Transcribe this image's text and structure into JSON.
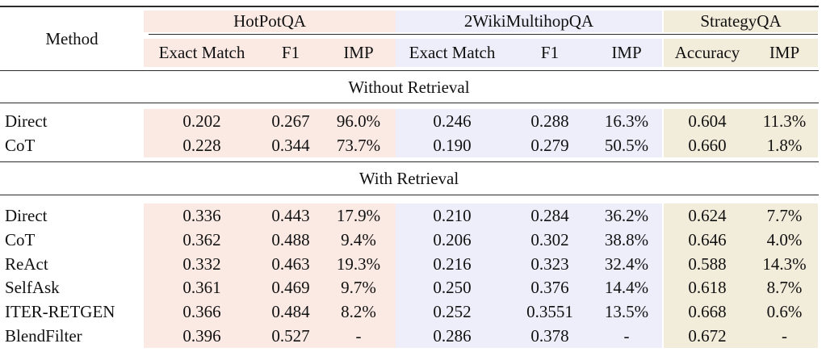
{
  "table": {
    "method_header": "Method",
    "groups": [
      {
        "name": "HotPotQA",
        "bg_color": "#fbeae4",
        "columns": [
          "Exact Match",
          "F1",
          "IMP"
        ]
      },
      {
        "name": "2WikiMultihopQA",
        "bg_color": "#edeefa",
        "columns": [
          "Exact Match",
          "F1",
          "IMP"
        ]
      },
      {
        "name": "StrategyQA",
        "bg_color": "#f2ecda",
        "columns": [
          "Accuracy",
          "IMP"
        ]
      }
    ],
    "sections": [
      {
        "title": "Without Retrieval",
        "rows": [
          {
            "method": "Direct",
            "values": [
              "0.202",
              "0.267",
              "96.0%",
              "0.246",
              "0.288",
              "16.3%",
              "0.604",
              "11.3%"
            ]
          },
          {
            "method": "CoT",
            "values": [
              "0.228",
              "0.344",
              "73.7%",
              "0.190",
              "0.279",
              "50.5%",
              "0.660",
              "1.8%"
            ]
          }
        ]
      },
      {
        "title": "With Retrieval",
        "rows": [
          {
            "method": "Direct",
            "values": [
              "0.336",
              "0.443",
              "17.9%",
              "0.210",
              "0.284",
              "36.2%",
              "0.624",
              "7.7%"
            ]
          },
          {
            "method": "CoT",
            "values": [
              "0.362",
              "0.488",
              "9.4%",
              "0.206",
              "0.302",
              "38.8%",
              "0.646",
              "4.0%"
            ]
          },
          {
            "method": "ReAct",
            "values": [
              "0.332",
              "0.463",
              "19.3%",
              "0.216",
              "0.323",
              "32.4%",
              "0.588",
              "14.3%"
            ]
          },
          {
            "method": "SelfAsk",
            "values": [
              "0.361",
              "0.469",
              "9.7%",
              "0.250",
              "0.376",
              "14.4%",
              "0.618",
              "8.7%"
            ]
          },
          {
            "method": "ITER-RETGEN",
            "values": [
              "0.366",
              "0.484",
              "8.2%",
              "0.252",
              "0.3551",
              "13.5%",
              "0.668",
              "0.6%"
            ]
          },
          {
            "method": "BlendFilter",
            "values": [
              "0.396",
              "0.527",
              "-",
              "0.286",
              "0.378",
              "-",
              "0.672",
              "-"
            ]
          }
        ]
      }
    ],
    "colors": {
      "text": "#111111",
      "rule": "#2b2b2b",
      "hotpotqa_bg": "#fbeae4",
      "wiki_bg": "#edeefa",
      "strategyqa_bg": "#f2ecda"
    }
  }
}
